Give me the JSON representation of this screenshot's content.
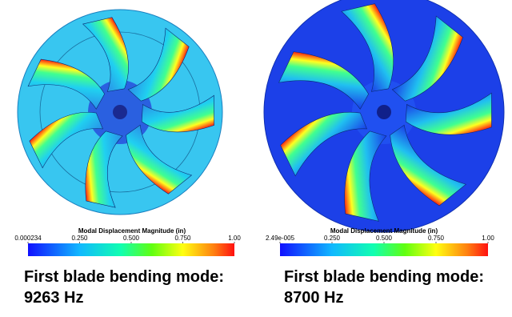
{
  "panels": [
    {
      "colorbar": {
        "title": "Modal Displacement Magnitude (in)",
        "ticks": [
          "0.000234",
          "0.250",
          "0.500",
          "0.750",
          "1.00"
        ]
      },
      "caption": [
        "First blade bending mode:",
        "9263 Hz"
      ]
    },
    {
      "colorbar": {
        "title": "Modal Displacement Magnitude (in)",
        "ticks": [
          "2.49e-005",
          "0.250",
          "0.500",
          "0.750",
          "1.00"
        ]
      },
      "caption": [
        "First blade bending mode:",
        "8700 Hz"
      ]
    }
  ]
}
